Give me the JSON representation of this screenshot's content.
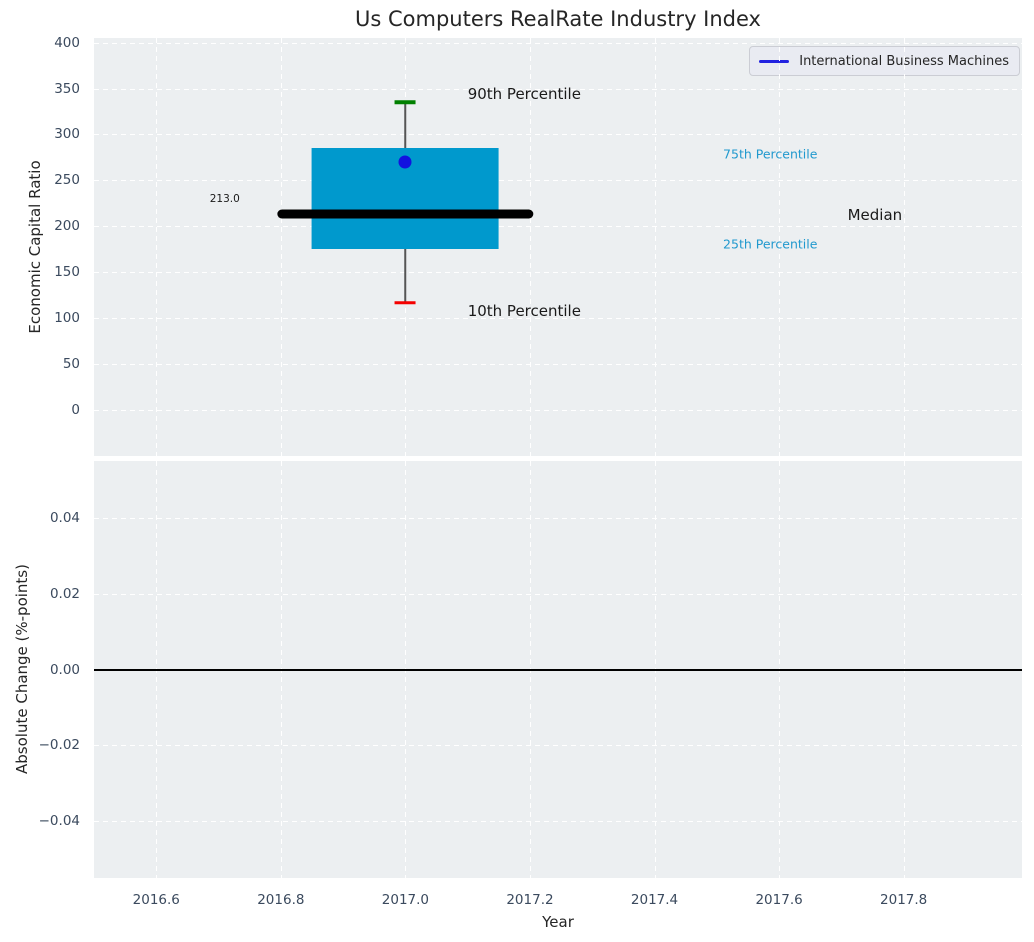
{
  "title": "Us Computers RealRate Industry Index",
  "legend": {
    "label": "International Business Machines"
  },
  "colors": {
    "plot_bg": "#ECEFF1",
    "grid": "#ffffff",
    "tick_text": "#3b4a5e",
    "label_text": "#262626",
    "annot_text": "#1a1a1a",
    "percentile_text": "#2199CE",
    "box_fill": "#0099CD",
    "median_line": "#000000",
    "whisker": "#555555",
    "cap_90": "#008000",
    "cap_10": "#F40000",
    "company_dot": "#1212E0",
    "legend_line": "#2222E0",
    "zero_line": "#000000"
  },
  "chart_data": [
    {
      "type": "boxplot",
      "title": "Us Computers RealRate Industry Index",
      "ylabel": "Economic Capital Ratio",
      "xlim": [
        2016.5,
        2017.99
      ],
      "ylim": [
        -50,
        405
      ],
      "grid": true,
      "legend_position": "upper right",
      "xticks": [
        {
          "v": 2016.6,
          "label": "2016.6"
        },
        {
          "v": 2016.8,
          "label": "2016.8"
        },
        {
          "v": 2017.0,
          "label": "2017.0"
        },
        {
          "v": 2017.2,
          "label": "2017.2"
        },
        {
          "v": 2017.4,
          "label": "2017.4"
        },
        {
          "v": 2017.6,
          "label": "2017.6"
        },
        {
          "v": 2017.8,
          "label": "2017.8"
        }
      ],
      "show_xticklabels": false,
      "yticks": [
        {
          "v": 400,
          "label": "400"
        },
        {
          "v": 350,
          "label": "350"
        },
        {
          "v": 300,
          "label": "300"
        },
        {
          "v": 250,
          "label": "250"
        },
        {
          "v": 200,
          "label": "200"
        },
        {
          "v": 150,
          "label": "150"
        },
        {
          "v": 100,
          "label": "100"
        },
        {
          "v": 50,
          "label": "50"
        },
        {
          "v": 0,
          "label": "0"
        }
      ],
      "box": {
        "x": 2017.0,
        "p90": 335,
        "p75": 285,
        "median": 213,
        "p25": 175,
        "p10": 117,
        "company_value": 270,
        "median_value_label": "213.0",
        "box_halfwidth": 0.15,
        "median_halfwidth": 0.205,
        "cap_halfwidth": 0.0168
      },
      "annotations": [
        {
          "text": "90th Percentile",
          "x": 2017.1,
          "y": 344,
          "size": 15,
          "color_key": "annot_text",
          "anchor": "left",
          "name": "label-90th-percentile"
        },
        {
          "text": "10th Percentile",
          "x": 2017.1,
          "y": 108,
          "size": 15,
          "color_key": "annot_text",
          "anchor": "left",
          "name": "label-10th-percentile"
        },
        {
          "text": "75th Percentile",
          "x": 2017.51,
          "y": 279,
          "size": 12.5,
          "color_key": "percentile_text",
          "anchor": "left",
          "name": "label-75th-percentile"
        },
        {
          "text": "25th Percentile",
          "x": 2017.51,
          "y": 181,
          "size": 12.5,
          "color_key": "percentile_text",
          "anchor": "left",
          "name": "label-25th-percentile"
        },
        {
          "text": "Median",
          "x": 2017.71,
          "y": 212,
          "size": 15,
          "color_key": "annot_text",
          "anchor": "left",
          "name": "label-median"
        },
        {
          "text": "213.0",
          "x": 2016.71,
          "y": 230,
          "size": 10.5,
          "color_key": "annot_text",
          "anchor": "middle",
          "name": "label-median-value"
        }
      ]
    },
    {
      "type": "line",
      "ylabel": "Absolute Change (%-points)",
      "xlabel": "Year",
      "xlim": [
        2016.5,
        2017.99
      ],
      "ylim": [
        -0.055,
        0.055
      ],
      "grid": true,
      "xticks": [
        {
          "v": 2016.6,
          "label": "2016.6"
        },
        {
          "v": 2016.8,
          "label": "2016.8"
        },
        {
          "v": 2017.0,
          "label": "2017.0"
        },
        {
          "v": 2017.2,
          "label": "2017.2"
        },
        {
          "v": 2017.4,
          "label": "2017.4"
        },
        {
          "v": 2017.6,
          "label": "2017.6"
        },
        {
          "v": 2017.8,
          "label": "2017.8"
        }
      ],
      "show_xticklabels": true,
      "yticks": [
        {
          "v": 0.04,
          "label": "0.04"
        },
        {
          "v": 0.02,
          "label": "0.02"
        },
        {
          "v": 0.0,
          "label": "0.00"
        },
        {
          "v": -0.02,
          "label": "−0.02"
        },
        {
          "v": -0.04,
          "label": "−0.04"
        }
      ],
      "zero_line": 0.0
    }
  ]
}
